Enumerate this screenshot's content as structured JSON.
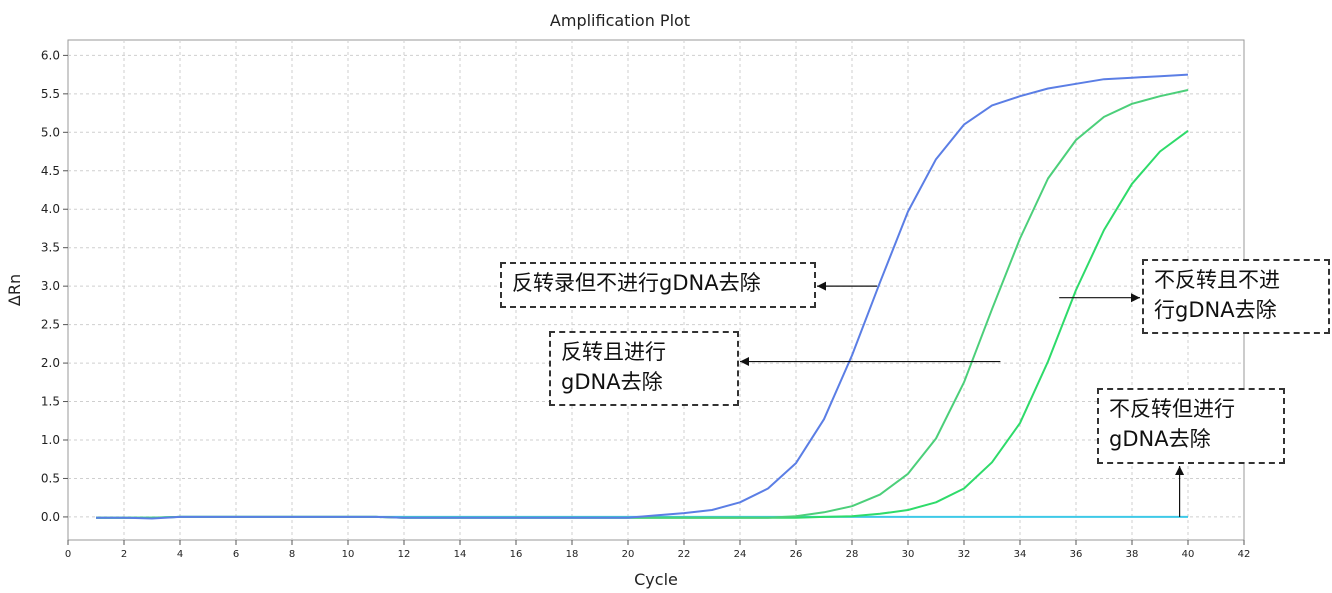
{
  "chart_data": {
    "type": "line",
    "title": "Amplification Plot",
    "xlabel": "Cycle",
    "ylabel": "ΔRn",
    "xlim": [
      0,
      42
    ],
    "ylim": [
      -0.3,
      6.2
    ],
    "x_ticks": [
      0,
      2,
      4,
      6,
      8,
      10,
      12,
      14,
      16,
      18,
      20,
      22,
      24,
      26,
      28,
      30,
      32,
      34,
      36,
      38,
      40,
      42
    ],
    "y_ticks": [
      0.0,
      0.5,
      1.0,
      1.5,
      2.0,
      2.5,
      3.0,
      3.5,
      4.0,
      4.5,
      5.0,
      5.5,
      6.0
    ],
    "y_tick_labels": [
      "0.0",
      "0.5",
      "1.0",
      "1.5",
      "2.0",
      "2.5",
      "3.0",
      "3.5",
      "4.0",
      "4.5",
      "5.0",
      "5.5",
      "6.0"
    ],
    "grid": true,
    "x": [
      1,
      2,
      3,
      4,
      5,
      6,
      7,
      8,
      9,
      10,
      11,
      12,
      13,
      14,
      15,
      16,
      17,
      18,
      19,
      20,
      21,
      22,
      23,
      24,
      25,
      26,
      27,
      28,
      29,
      30,
      31,
      32,
      33,
      34,
      35,
      36,
      37,
      38,
      39,
      40
    ],
    "series": [
      {
        "color": "#5b7ee5",
        "values": [
          -0.01,
          -0.01,
          -0.02,
          0.0,
          0.0,
          0.0,
          0.0,
          0.0,
          0.0,
          0.0,
          0.0,
          -0.01,
          -0.01,
          -0.01,
          -0.01,
          -0.01,
          -0.01,
          -0.01,
          -0.01,
          -0.01,
          0.02,
          0.05,
          0.09,
          0.19,
          0.37,
          0.7,
          1.27,
          2.1,
          3.05,
          3.97,
          4.65,
          5.1,
          5.35,
          5.47,
          5.57,
          5.63,
          5.69,
          5.71,
          5.73,
          5.75
        ]
      },
      {
        "color": "#4ccf7a",
        "values": [
          -0.01,
          -0.01,
          -0.01,
          0.0,
          0.0,
          0.0,
          0.0,
          0.0,
          0.0,
          0.0,
          0.0,
          -0.01,
          -0.01,
          -0.01,
          -0.01,
          -0.01,
          -0.01,
          -0.01,
          -0.01,
          -0.01,
          -0.01,
          -0.01,
          -0.01,
          -0.01,
          -0.01,
          0.01,
          0.06,
          0.14,
          0.29,
          0.56,
          1.02,
          1.75,
          2.7,
          3.62,
          4.4,
          4.9,
          5.2,
          5.37,
          5.47,
          5.55
        ]
      },
      {
        "color": "#2edb6a",
        "values": [
          -0.01,
          -0.01,
          -0.01,
          0.0,
          0.0,
          0.0,
          0.0,
          0.0,
          0.0,
          0.0,
          0.0,
          -0.01,
          -0.01,
          -0.01,
          -0.01,
          -0.01,
          -0.01,
          -0.01,
          -0.01,
          -0.01,
          -0.01,
          -0.01,
          -0.01,
          -0.01,
          -0.01,
          -0.01,
          0.0,
          0.01,
          0.04,
          0.09,
          0.19,
          0.37,
          0.71,
          1.22,
          2.02,
          2.95,
          3.73,
          4.33,
          4.75,
          5.02
        ]
      },
      {
        "color": "#3ec9e8",
        "values": [
          -0.01,
          -0.01,
          -0.01,
          0.0,
          0.0,
          0.0,
          0.0,
          0.0,
          0.0,
          0.0,
          0.0,
          0.0,
          0.0,
          0.0,
          0.0,
          0.0,
          0.0,
          0.0,
          0.0,
          0.0,
          0.0,
          0.0,
          0.0,
          0.0,
          0.0,
          0.0,
          0.0,
          0.0,
          0.0,
          0.0,
          0.0,
          0.0,
          0.0,
          0.0,
          0.0,
          0.0,
          0.0,
          0.0,
          0.0,
          0.0
        ]
      }
    ],
    "annotations": [
      {
        "text": "反转录但不进行gDNA去除",
        "lines": [
          "反转录但不进行gDNA去除"
        ],
        "arrow_target": [
          28.9,
          3.0
        ]
      },
      {
        "text": "反转且进行gDNA去除",
        "lines": [
          "反转且进行",
          "gDNA去除"
        ],
        "arrow_target": [
          33.3,
          2.02
        ]
      },
      {
        "text": "不反转且不进行gDNA去除",
        "lines": [
          "不反转且不进",
          "行gDNA去除"
        ],
        "arrow_target": [
          35.4,
          2.85
        ]
      },
      {
        "text": "不反转但进行gDNA去除",
        "lines": [
          "不反转但进行",
          "gDNA去除"
        ],
        "arrow_target": [
          39.7,
          0.0
        ]
      }
    ]
  }
}
